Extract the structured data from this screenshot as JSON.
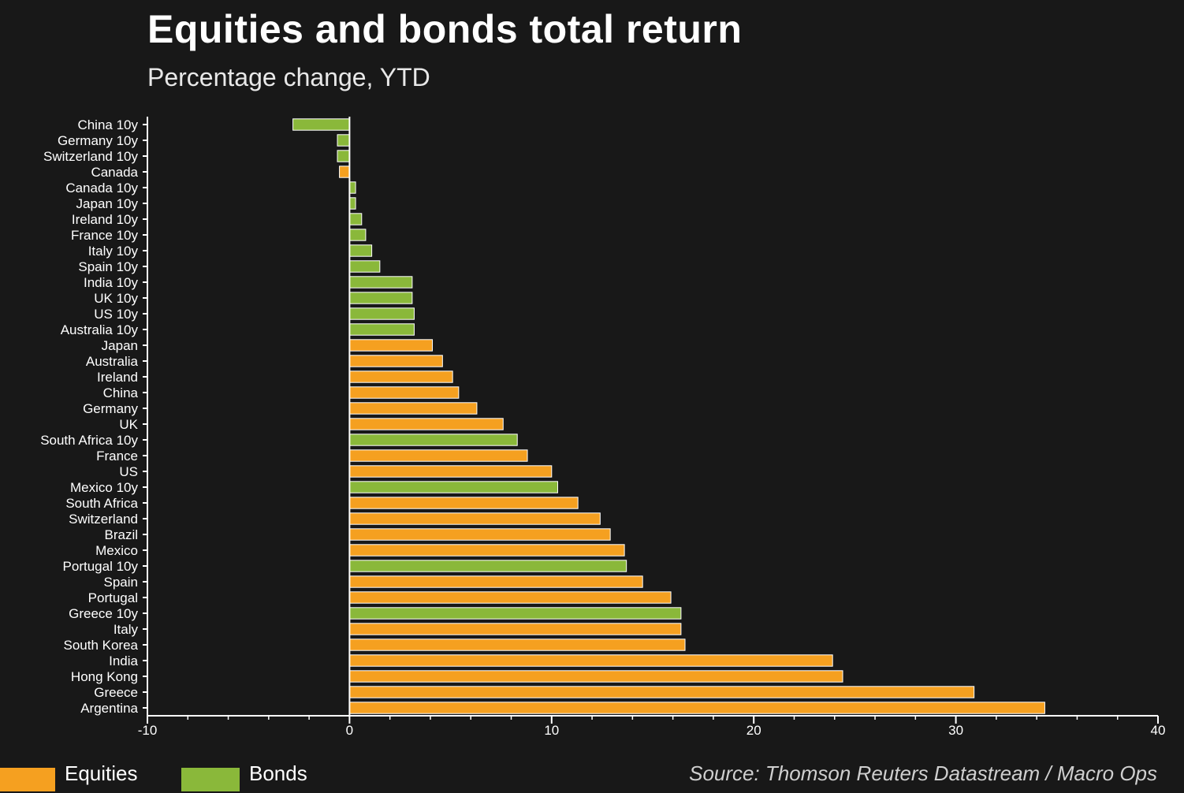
{
  "header": {
    "title": "Equities and bonds total return",
    "subtitle": "Percentage change, YTD"
  },
  "legend": {
    "equities_label": "Equities",
    "bonds_label": "Bonds"
  },
  "source": "Source: Thomson Reuters Datastream / Macro Ops",
  "colors": {
    "equities": "#f5a020",
    "bonds": "#8ab83a",
    "background": "#181818",
    "axis": "#ffffff"
  },
  "chart_data": {
    "type": "bar",
    "orientation": "horizontal",
    "title": "Equities and bonds total return",
    "subtitle": "Percentage change, YTD",
    "xlim": [
      -10,
      40
    ],
    "x_ticks": [
      -10,
      0,
      10,
      20,
      30,
      40
    ],
    "grid": false,
    "legend_position": "bottom-left",
    "series": [
      {
        "name": "Equities"
      },
      {
        "name": "Bonds"
      }
    ],
    "categories": [
      "China 10y",
      "Germany 10y",
      "Switzerland 10y",
      "Canada",
      "Canada 10y",
      "Japan 10y",
      "Ireland 10y",
      "France 10y",
      "Italy 10y",
      "Spain 10y",
      "India 10y",
      "UK 10y",
      "US 10y",
      "Australia 10y",
      "Japan",
      "Australia",
      "Ireland",
      "China",
      "Germany",
      "UK",
      "South Africa 10y",
      "France",
      "US",
      "Mexico 10y",
      "South Africa",
      "Switzerland",
      "Brazil",
      "Mexico",
      "Portugal 10y",
      "Spain",
      "Portugal",
      "Greece 10y",
      "Italy",
      "South Korea",
      "India",
      "Hong Kong",
      "Greece",
      "Argentina"
    ],
    "values": [
      -2.8,
      -0.6,
      -0.6,
      -0.5,
      0.3,
      0.3,
      0.6,
      0.8,
      1.1,
      1.5,
      3.1,
      3.1,
      3.2,
      3.2,
      4.1,
      4.6,
      5.1,
      5.4,
      6.3,
      7.6,
      8.3,
      8.8,
      10.0,
      10.3,
      11.3,
      12.4,
      12.9,
      13.6,
      13.7,
      14.5,
      15.9,
      16.4,
      16.4,
      16.6,
      23.9,
      24.4,
      30.9,
      34.4
    ],
    "types": [
      "Bonds",
      "Bonds",
      "Bonds",
      "Equities",
      "Bonds",
      "Bonds",
      "Bonds",
      "Bonds",
      "Bonds",
      "Bonds",
      "Bonds",
      "Bonds",
      "Bonds",
      "Bonds",
      "Equities",
      "Equities",
      "Equities",
      "Equities",
      "Equities",
      "Equities",
      "Bonds",
      "Equities",
      "Equities",
      "Bonds",
      "Equities",
      "Equities",
      "Equities",
      "Equities",
      "Bonds",
      "Equities",
      "Equities",
      "Bonds",
      "Equities",
      "Equities",
      "Equities",
      "Equities",
      "Equities",
      "Equities"
    ]
  }
}
